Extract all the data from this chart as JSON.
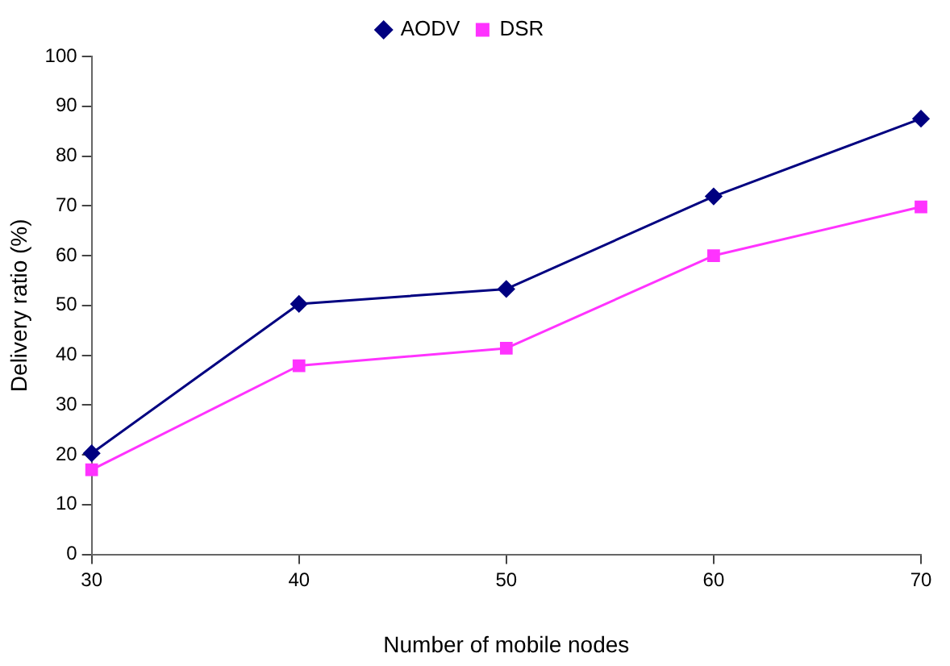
{
  "chart_data": {
    "type": "line",
    "xlabel": "Number of mobile nodes",
    "ylabel": "Delivery ratio (%)",
    "x": [
      30,
      40,
      50,
      60,
      70
    ],
    "series": [
      {
        "name": "AODV",
        "color": "#000080",
        "marker": "diamond",
        "values": [
          20.3,
          50.3,
          53.3,
          71.9,
          87.5
        ]
      },
      {
        "name": "DSR",
        "color": "#ff33ff",
        "marker": "square",
        "values": [
          17,
          37.9,
          41.4,
          60,
          69.8
        ]
      }
    ],
    "xlim": [
      30,
      70
    ],
    "xticks": [
      30,
      40,
      50,
      60,
      70
    ],
    "ylim": [
      0,
      100
    ],
    "yticks": [
      0,
      10,
      20,
      30,
      40,
      50,
      60,
      70,
      80,
      90,
      100
    ],
    "grid": false,
    "legend": "top",
    "line_style": "solid"
  }
}
